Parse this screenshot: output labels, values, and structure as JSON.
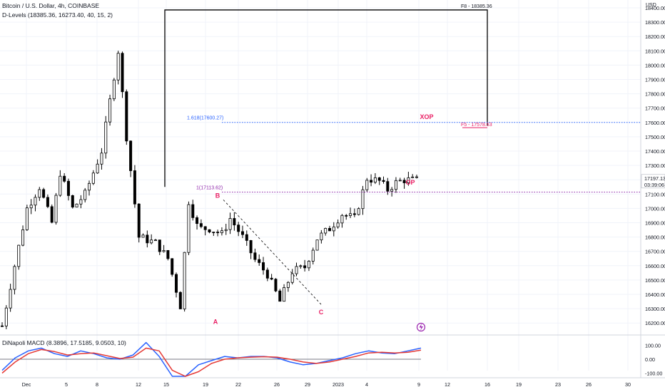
{
  "header": {
    "symbol_title": "Bitcoin / U.S. Dollar, 4h, COINBASE",
    "indicator_dlevels": "D-Levels (18385.36, 16273.40, 40, 15, 2)",
    "indicator_macd": "DiNapoli MACD (8.3896, 17.5185, 9.0503, 10)"
  },
  "colors": {
    "up": "#26a69a",
    "down": "#ef5350",
    "candle": "#000000",
    "fib_blue": "#2962ff",
    "fib_purple": "#8e24aa",
    "pattern_red": "#e91e63",
    "macd": "#2962ff",
    "signal": "#e53935",
    "grid": "#f0f3fa",
    "axis_text": "#131722"
  },
  "chart_data": [
    {
      "type": "candlestick",
      "title": "Bitcoin / U.S. Dollar, 4h, COINBASE",
      "currency_label": "USD",
      "ylim": [
        16150,
        18450
      ],
      "y_ticks": [
        "16200.00",
        "16300.00",
        "16400.00",
        "16500.00",
        "16600.00",
        "16700.00",
        "16800.00",
        "16900.00",
        "17000.00",
        "17100.00",
        "17200.00",
        "17300.00",
        "17400.00",
        "17500.00",
        "17600.00",
        "17700.00",
        "17800.00",
        "17900.00",
        "18000.00",
        "18100.00",
        "18200.00",
        "18300.00",
        "18400.00"
      ],
      "x_ticks": [
        "Dec",
        "5",
        "8",
        "12",
        "15",
        "19",
        "22",
        "26",
        "29",
        "2023",
        "4",
        "9",
        "12",
        "16",
        "19",
        "23",
        "26",
        "30"
      ],
      "price_path": {
        "x": [
          0,
          3,
          6,
          9,
          12,
          14,
          17,
          20,
          24,
          28,
          30,
          33,
          37,
          40,
          43,
          45,
          47,
          48,
          50,
          53,
          55,
          58,
          61,
          64,
          67,
          70,
          73,
          76,
          79,
          82,
          85,
          88,
          91,
          93,
          95,
          97,
          100
        ],
        "close": [
          16180,
          16600,
          17000,
          17150,
          16900,
          17250,
          17000,
          17100,
          17400,
          18100,
          17500,
          16800,
          16760,
          16650,
          16320,
          17050,
          16880,
          16860,
          16860,
          16820,
          16930,
          16800,
          16640,
          16540,
          16350,
          16560,
          16590,
          16790,
          16860,
          16960,
          16930,
          17210,
          17190,
          17130,
          17180,
          17200,
          17197
        ]
      },
      "last_price": "17197.13",
      "countdown": "03:39:06",
      "levels": [
        {
          "label": "F8 - 18385.36",
          "value": 18385.36
        },
        {
          "label": "1.618(17600.27)",
          "value": 17600.27
        },
        {
          "label": "F5 - 17578.53",
          "value": 17578.53
        },
        {
          "label": "1(17113.62)",
          "value": 17113.62
        }
      ],
      "pattern_labels": [
        {
          "label": "A",
          "value": 16273.4
        },
        {
          "label": "B",
          "value": 17060
        },
        {
          "label": "C",
          "value": 16330
        },
        {
          "label": "OP",
          "value": 17197
        },
        {
          "label": "XOP",
          "value": 17600
        }
      ]
    },
    {
      "type": "line",
      "title": "DiNapoli MACD (8.3896, 17.5185, 9.0503, 10)",
      "ylim": [
        -160,
        160
      ],
      "y_ticks": [
        "100.00",
        "0.00",
        "-100.00"
      ],
      "series": [
        {
          "values": [
            -80,
            10,
            60,
            80,
            40,
            20,
            60,
            40,
            10,
            0,
            30,
            120,
            20,
            -150,
            -160,
            -40,
            -10,
            20,
            10,
            20,
            20,
            10,
            -20,
            -40,
            -30,
            -10,
            10,
            40,
            60,
            45,
            40,
            60,
            80
          ]
        },
        {
          "values": [
            -100,
            -20,
            40,
            70,
            55,
            30,
            40,
            45,
            25,
            5,
            15,
            80,
            60,
            -80,
            -150,
            -90,
            -30,
            0,
            10,
            15,
            18,
            15,
            0,
            -20,
            -30,
            -20,
            0,
            20,
            45,
            50,
            45,
            50,
            65
          ]
        }
      ]
    }
  ]
}
